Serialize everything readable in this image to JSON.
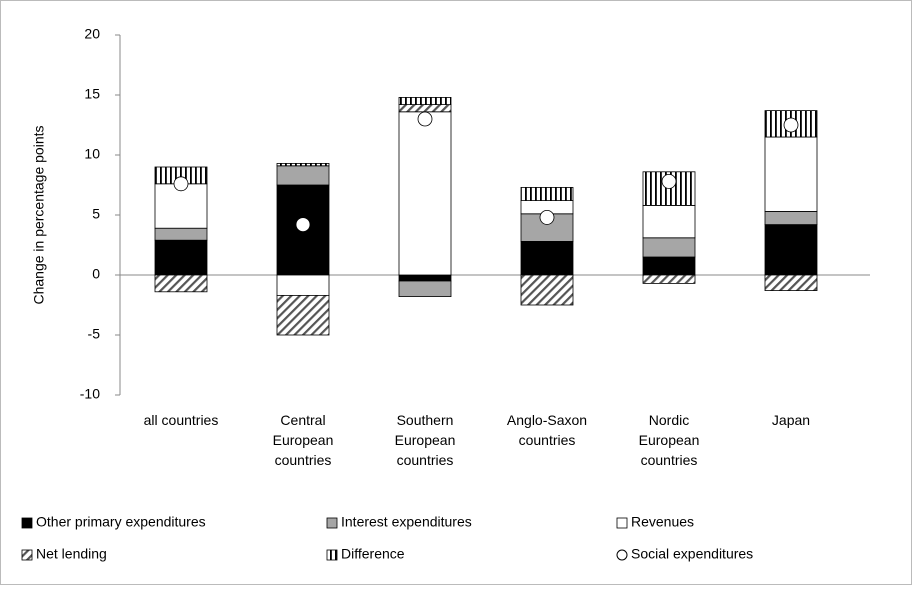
{
  "chart_data": {
    "type": "bar",
    "stacked": true,
    "y_label": "Change in percentage points",
    "categories": [
      "all countries",
      "Central European countries",
      "Southern European countries",
      "Anglo-Saxon countries",
      "Nordic European countries",
      "Japan"
    ],
    "series": [
      {
        "name": "Other primary expenditures",
        "color": "#000000",
        "values": [
          2.9,
          7.5,
          -0.5,
          2.8,
          1.5,
          4.2
        ]
      },
      {
        "name": "Interest expenditures",
        "color": "#a6a6a6",
        "values": [
          1.0,
          1.6,
          -1.3,
          2.3,
          1.6,
          1.1
        ]
      },
      {
        "name": "Revenues",
        "color": "#ffffff",
        "values": [
          3.7,
          -1.7,
          13.6,
          1.1,
          2.7,
          6.2
        ]
      },
      {
        "name": "Net lending",
        "color": "#000000",
        "pattern": "diagonal",
        "values": [
          -1.4,
          -3.3,
          0.6,
          -2.5,
          -0.7,
          -1.3
        ]
      },
      {
        "name": "Difference",
        "color": "#000000",
        "pattern": "vertical",
        "values": [
          1.4,
          0.2,
          0.6,
          1.1,
          2.8,
          2.2
        ]
      },
      {
        "name": "Social expenditures",
        "type": "scatter",
        "color": "#ffffff",
        "values": [
          7.6,
          4.2,
          13.0,
          4.8,
          7.8,
          12.5
        ]
      }
    ],
    "ylim": [
      -10,
      20
    ],
    "yticks": [
      -10,
      -5,
      0,
      5,
      10,
      15,
      20
    ]
  }
}
